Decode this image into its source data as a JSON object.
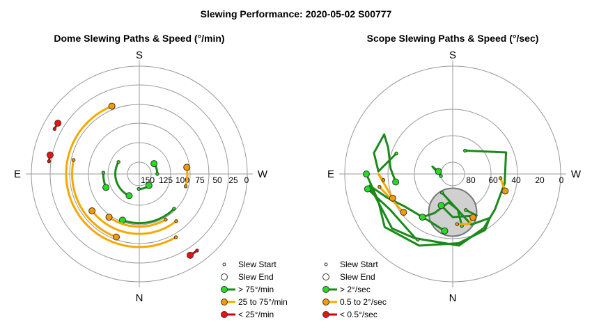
{
  "figure_title": "Slewing Performance: 2020-05-02 S00777",
  "colors": {
    "fast": "#1a8a1a",
    "fast_marker": "#22dd22",
    "medium": "#f5a800",
    "medium_marker": "#f59a00",
    "slow": "#cc0000",
    "slow_marker": "#ee1111",
    "grid": "#999999",
    "obscured": "#d0d0d0"
  },
  "chart_data": [
    {
      "type": "scatter",
      "projection": "polar",
      "title": "Dome Slewing Paths & Speed (°/min)",
      "compass": {
        "top": "S",
        "bottom": "N",
        "left": "E",
        "right": "W"
      },
      "radial_ticks": [
        "150",
        "125",
        "100",
        "75",
        "50",
        "25",
        "0"
      ],
      "radial_range": [
        0,
        180
      ],
      "rings": [
        15,
        40,
        65,
        90,
        115,
        140
      ],
      "legend": {
        "position": "bottom-right",
        "entries": [
          {
            "marker": "start",
            "label": "Slew Start"
          },
          {
            "marker": "end",
            "label": "Slew End"
          },
          {
            "marker": "fast",
            "label": "> 75°/min"
          },
          {
            "marker": "medium",
            "label": "25 to 75°/min"
          },
          {
            "marker": "slow",
            "label": "< 25°/min"
          }
        ]
      },
      "slews": [
        {
          "speed": "fast",
          "r": 25,
          "az_start": 182,
          "az_end": 140
        },
        {
          "speed": "fast",
          "r": 40,
          "az_start": 300,
          "az_end": 205
        },
        {
          "speed": "fast",
          "r": 60,
          "az_start": 272,
          "az_end": 248
        },
        {
          "speed": "fast",
          "r": 30,
          "az_start": 90,
          "az_end": 55
        },
        {
          "speed": "fast",
          "r": 82,
          "az_start": 135,
          "az_end": 200
        },
        {
          "speed": "medium",
          "r": 88,
          "az_start": 150,
          "az_end": 215
        },
        {
          "speed": "medium",
          "r": 100,
          "az_start": 142,
          "az_end": 232
        },
        {
          "speed": "medium",
          "r": 122,
          "az_start": 150,
          "az_end": 338
        },
        {
          "speed": "medium",
          "r": 112,
          "az_start": 282,
          "az_end": 200
        },
        {
          "speed": "medium",
          "r": 80,
          "az_start": 105,
          "az_end": 82
        },
        {
          "speed": "slow",
          "r": 160,
          "az_start": 143,
          "az_end": 148
        },
        {
          "speed": "slow",
          "r": 152,
          "az_start": 278,
          "az_end": 282
        },
        {
          "speed": "slow",
          "r": 160,
          "az_start": 298,
          "az_end": 302
        }
      ]
    },
    {
      "type": "scatter",
      "projection": "polar",
      "title": "Scope Slewing Paths & Speed (°/sec)",
      "compass": {
        "top": "S",
        "bottom": "N",
        "left": "E",
        "right": "W"
      },
      "radial_ticks": [
        "80",
        "60",
        "40",
        "20",
        "0"
      ],
      "radial_range": [
        0,
        90
      ],
      "rings": [
        10,
        30,
        50,
        70
      ],
      "obscured_zone": {
        "alt": 38,
        "az": 0,
        "radius_deg": 20
      },
      "legend": {
        "position": "bottom-right",
        "entries": [
          {
            "marker": "start",
            "label": "Slew Start"
          },
          {
            "marker": "end",
            "label": "Slew End"
          },
          {
            "marker": "fast",
            "label": "> 2°/sec"
          },
          {
            "marker": "medium",
            "label": "0.5 to 2°/sec"
          },
          {
            "marker": "slow",
            "label": "< 0.5°/sec"
          }
        ]
      },
      "slews": [
        {
          "speed": "fast",
          "points": [
            [
              22,
              28
            ],
            [
              48,
              68
            ],
            [
              44,
              100
            ],
            [
              46,
              130
            ],
            [
              52,
              150
            ],
            [
              60,
              175
            ],
            [
              62,
              210
            ],
            [
              60,
              240
            ],
            [
              72,
              260
            ]
          ]
        },
        {
          "speed": "fast",
          "points": [
            [
              18,
              210
            ],
            [
              45,
              160
            ],
            [
              48,
              140
            ],
            [
              54,
              150
            ],
            [
              58,
              175
            ],
            [
              66,
              205
            ],
            [
              72,
              232
            ],
            [
              66,
              250
            ],
            [
              72,
              270
            ]
          ]
        },
        {
          "speed": "fast",
          "points": [
            [
              62,
              208
            ],
            [
              68,
              228
            ],
            [
              70,
              262
            ],
            [
              58,
              250
            ],
            [
              48,
              235
            ],
            [
              44,
              205
            ],
            [
              48,
              188
            ]
          ]
        },
        {
          "speed": "fast",
          "points": [
            [
              44,
              170
            ],
            [
              30,
              172
            ],
            [
              24,
              188
            ],
            [
              36,
              205
            ],
            [
              44,
              215
            ]
          ]
        },
        {
          "speed": "fast",
          "points": [
            [
              50,
              290
            ],
            [
              62,
              272
            ],
            [
              68,
              285
            ],
            [
              66,
              300
            ],
            [
              58,
              292
            ],
            [
              52,
              275
            ],
            [
              48,
              262
            ]
          ]
        },
        {
          "speed": "fast",
          "points": [
            [
              10,
              260
            ],
            [
              18,
              290
            ],
            [
              12,
              280
            ]
          ]
        },
        {
          "speed": "fast",
          "points": [
            [
              32,
              160
            ],
            [
              40,
              150
            ],
            [
              36,
              180
            ],
            [
              28,
              200
            ]
          ]
        },
        {
          "speed": "medium",
          "points": [
            [
              62,
              260
            ],
            [
              52,
              232
            ]
          ]
        },
        {
          "speed": "medium",
          "points": [
            [
              42,
              175
            ],
            [
              44,
              162
            ],
            [
              40,
              155
            ]
          ]
        },
        {
          "speed": "medium",
          "points": [
            [
              40,
              95
            ],
            [
              46,
              108
            ]
          ]
        },
        {
          "speed": "medium",
          "points": [
            [
              58,
              265
            ],
            [
              62,
              270
            ],
            [
              54,
              248
            ]
          ]
        }
      ]
    }
  ]
}
